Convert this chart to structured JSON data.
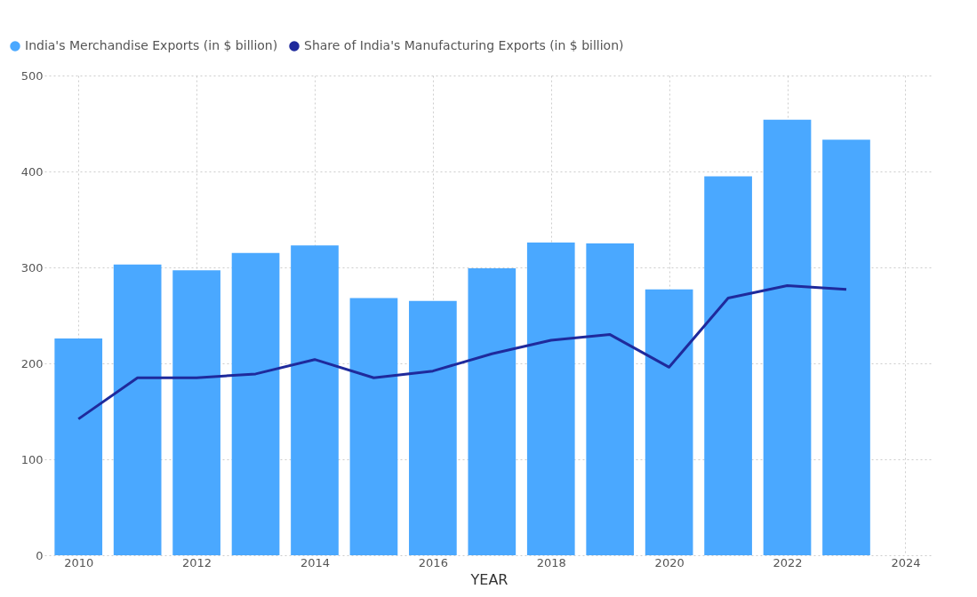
{
  "chart_data": {
    "type": "bar",
    "xlabel": "YEAR",
    "x": [
      2010,
      2011,
      2012,
      2013,
      2014,
      2015,
      2016,
      2017,
      2018,
      2019,
      2020,
      2021,
      2022,
      2023
    ],
    "series": [
      {
        "name": "India's Merchandise Exports (in $ billion)",
        "color": "#4aa8ff",
        "values": [
          226,
          303,
          297,
          315,
          323,
          268,
          265,
          299,
          326,
          325,
          277,
          395,
          454,
          433
        ]
      },
      {
        "name": "Share of India's Manufacturing Exports (in $ billion)",
        "color": "#1f2a9c",
        "type": "line",
        "values": [
          142,
          185,
          185,
          189,
          204,
          185,
          192,
          210,
          224,
          230,
          196,
          268,
          281,
          277
        ]
      }
    ],
    "xlim": [
      2009.5,
      2024.4
    ],
    "xticks": [
      2010,
      2012,
      2014,
      2016,
      2018,
      2020,
      2022,
      2024
    ],
    "ylim": [
      0,
      500
    ],
    "yticks": [
      0,
      100,
      200,
      300,
      400,
      500
    ],
    "grid": true,
    "legend": "top left",
    "marker": "none",
    "line_style": "solid"
  }
}
